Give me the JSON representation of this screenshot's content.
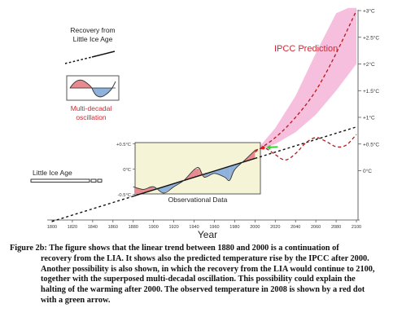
{
  "chart_data": {
    "type": "line",
    "x_axis": {
      "label": "Year",
      "ticks": [
        "1800",
        "1820",
        "1840",
        "1860",
        "1880",
        "1900",
        "1920",
        "1940",
        "1960",
        "1980",
        "2000",
        "2020",
        "2040",
        "2060",
        "2080",
        "2100"
      ],
      "range": [
        1800,
        2100
      ]
    },
    "right_axis": {
      "ticks": [
        "+3°C",
        "+2.5°C",
        "+2°C",
        "+1.5°C",
        "+1°C",
        "+0.5°C",
        "0°C"
      ],
      "values": [
        3,
        2.5,
        2,
        1.5,
        1,
        0.5,
        0
      ],
      "range": [
        -0.85,
        3.05
      ]
    },
    "inset_axis": {
      "ticks": [
        "+0.5°C",
        "0°C",
        "-0.5°C"
      ],
      "values": [
        0.5,
        0,
        -0.5
      ]
    },
    "series": [
      {
        "role": "linear-recovery-trend",
        "style": "dashed",
        "color": "#111111",
        "x": [
          1800,
          2100
        ],
        "y": [
          -0.95,
          0.82
        ]
      },
      {
        "role": "ipcc-prediction",
        "style": "dashed",
        "color": "#b8171b",
        "x": [
          2000,
          2020,
          2040,
          2060,
          2080,
          2100
        ],
        "y": [
          0.35,
          0.62,
          1.0,
          1.5,
          2.2,
          3.0
        ]
      },
      {
        "role": "ipcc-range-upper",
        "style": "band",
        "color": "#f4b4d8",
        "x": [
          2000,
          2020,
          2040,
          2060,
          2080,
          2092
        ],
        "y": [
          0.35,
          0.8,
          1.4,
          2.2,
          2.95,
          3.05
        ]
      },
      {
        "role": "ipcc-range-lower",
        "style": "band",
        "color": "#f4b4d8",
        "x": [
          2000,
          2020,
          2040,
          2060,
          2080,
          2100
        ],
        "y": [
          0.35,
          0.5,
          0.72,
          1.05,
          1.5,
          2.0
        ]
      },
      {
        "role": "recovery-plus-oscillation",
        "style": "dashed",
        "color": "#b8171b",
        "x": [
          2000,
          2010,
          2020,
          2030,
          2040,
          2050,
          2060,
          2070,
          2080,
          2090,
          2100
        ],
        "y": [
          0.38,
          0.42,
          0.3,
          0.2,
          0.32,
          0.52,
          0.62,
          0.55,
          0.45,
          0.48,
          0.68
        ]
      },
      {
        "role": "observational-data",
        "style": "solid",
        "color": "#333333",
        "x": [
          1880,
          1890,
          1900,
          1910,
          1920,
          1930,
          1940,
          1945,
          1950,
          1960,
          1970,
          1975,
          1980,
          1990,
          2000
        ],
        "y": [
          -0.3,
          -0.35,
          -0.3,
          -0.42,
          -0.3,
          -0.18,
          0.02,
          0.05,
          -0.12,
          -0.05,
          -0.12,
          -0.18,
          0.02,
          0.2,
          0.38
        ]
      }
    ],
    "observed_2008": {
      "x": 2008,
      "y": 0.43,
      "marker_color": "#e01a1a",
      "arrow_color": "#33cc33"
    },
    "annotations": [
      "Recovery from",
      "Little Ice Age",
      "Multi-decadal",
      "oscillation",
      "IPCC Prediction",
      "Little Ice Age",
      "Observational Data"
    ],
    "colors": {
      "ipcc_band": "#f4b4d8",
      "ipcc_line": "#b8171b",
      "warm_fill": "#e88b90",
      "cool_fill": "#8fb2dc",
      "inset_bg": "#f6f4d6",
      "annotation_red": "#cc2b35"
    }
  },
  "figure_text": {
    "recovery_line1": "Recovery from",
    "recovery_line2": "Little Ice Age",
    "osc_line1": "Multi-decadal",
    "osc_line2": "oscillation",
    "ipcc_label": "IPCC Prediction",
    "lia_label": "Little Ice Age",
    "obs_label": "Observational Data",
    "x_title": "Year"
  },
  "caption": {
    "lines": [
      "Figure 2b:  The figure shows that the linear trend between 1880 and 2000 is a continuation of",
      "recovery from the LIA.  It shows also the predicted temperature rise by the IPCC after 2000.",
      "Another possibility is also shown, in which the recovery from the LIA would continue to 2100,",
      "together with the superposed multi-decadal oscillation.  This possibility could explain the",
      "halting of the warming after 2000.  The observed temperature in 2008 is shown by a red dot",
      "with a green arrow."
    ]
  }
}
